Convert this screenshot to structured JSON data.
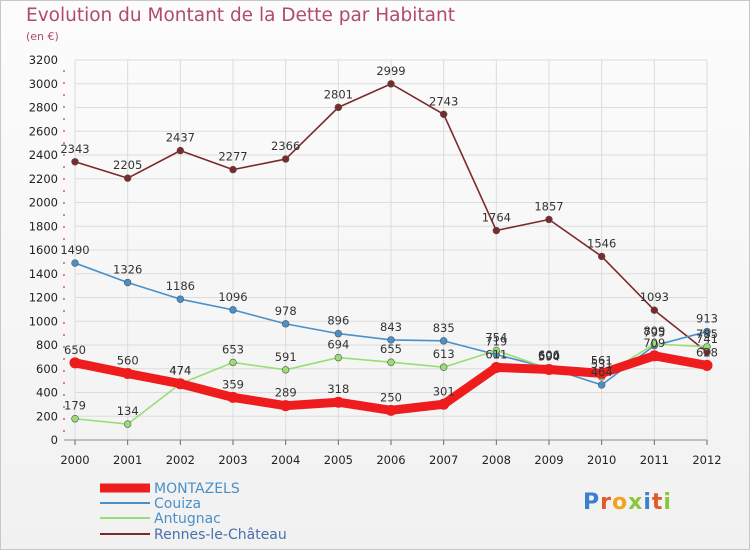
{
  "title": "Evolution du Montant de la Dette par Habitant",
  "unit": "(en €)",
  "logo": "Proxiti",
  "chart_data": {
    "type": "line",
    "x": [
      "2000",
      "2001",
      "2002",
      "2003",
      "2004",
      "2005",
      "2006",
      "2007",
      "2008",
      "2009",
      "2010",
      "2011",
      "2012"
    ],
    "ylim": [
      0,
      3200
    ],
    "yticks": [
      0,
      200,
      400,
      600,
      800,
      1000,
      1200,
      1400,
      1600,
      1800,
      2000,
      2200,
      2400,
      2600,
      2800,
      3000,
      3200
    ],
    "grid": true,
    "legend_position": "bottom",
    "series": [
      {
        "name": "MONTAZELS",
        "color": "#ee1c1c",
        "values": [
          650,
          560,
          474,
          359,
          289,
          318,
          250,
          301,
          611,
          594,
          561,
          709,
          628
        ],
        "labels": [
          "650",
          "560",
          "474",
          "359",
          "289",
          "318",
          "250",
          "301",
          "611",
          "594",
          "561",
          "709",
          "628"
        ]
      },
      {
        "name": "Couiza",
        "color": "#4a90c8",
        "values": [
          1490,
          1326,
          1186,
          1096,
          978,
          896,
          843,
          835,
          719,
          606,
          464,
          795,
          913
        ],
        "labels": [
          "1490",
          "1326",
          "1186",
          "1096",
          "978",
          "896",
          "843",
          "835",
          "719",
          "606",
          "464",
          "795",
          "913"
        ]
      },
      {
        "name": "Antugnac",
        "color": "#99dd77",
        "values": [
          179,
          134,
          474,
          653,
          591,
          694,
          655,
          613,
          754,
          600,
          531,
          809,
          785
        ],
        "labels": [
          "179",
          "134",
          "474",
          "653",
          "591",
          "694",
          "655",
          "613",
          "754",
          "600",
          "531",
          "809",
          "785"
        ]
      },
      {
        "name": "Rennes-le-Château",
        "color": "#7a2a2a",
        "values": [
          2343,
          2205,
          2437,
          2277,
          2366,
          2801,
          2999,
          2743,
          1764,
          1857,
          1546,
          1093,
          741
        ],
        "labels": [
          "2343",
          "2205",
          "2437",
          "2277",
          "2366",
          "2801",
          "2999",
          "2743",
          "1764",
          "1857",
          "1546",
          "1093",
          "741"
        ]
      }
    ]
  }
}
